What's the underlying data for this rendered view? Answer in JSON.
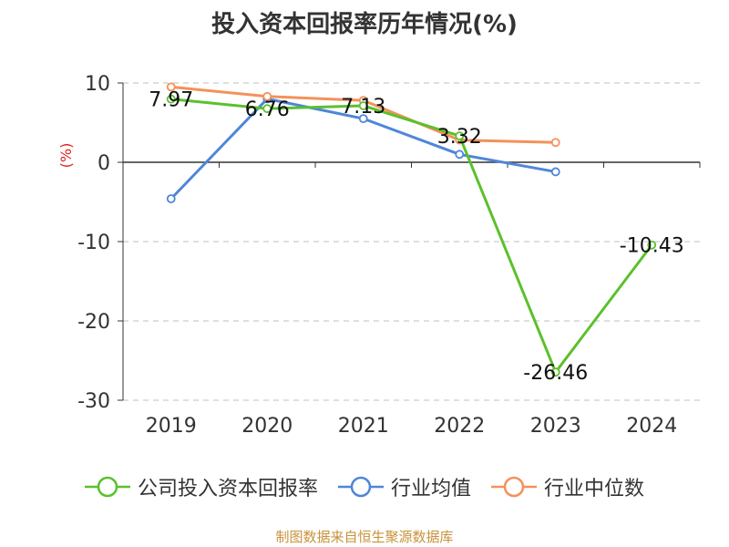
{
  "chart_data": {
    "type": "line",
    "title": "投入资本回报率历年情况(%)",
    "ylabel": "(%)",
    "categories": [
      "2019",
      "2020",
      "2021",
      "2022",
      "2023",
      "2024"
    ],
    "ylim": [
      -30,
      10
    ],
    "yticks": [
      10,
      0,
      -10,
      -20,
      -30
    ],
    "grid": true,
    "legend_position": "bottom",
    "series": [
      {
        "name": "公司投入资本回报率",
        "color": "#5cc02c",
        "values": [
          7.97,
          6.76,
          7.13,
          3.32,
          -26.46,
          -10.43
        ],
        "labels": [
          "7.97",
          "6.76",
          "7.13",
          "3.32",
          "-26.46",
          "-10.43"
        ]
      },
      {
        "name": "行业均值",
        "color": "#4f86d8",
        "values": [
          -4.6,
          8.0,
          5.5,
          1.0,
          -1.2,
          null
        ],
        "labels": []
      },
      {
        "name": "行业中位数",
        "color": "#f4915a",
        "values": [
          9.5,
          8.3,
          7.8,
          2.8,
          2.5,
          null
        ],
        "labels": []
      }
    ]
  },
  "footer": "制图数据来自恒生聚源数据库"
}
